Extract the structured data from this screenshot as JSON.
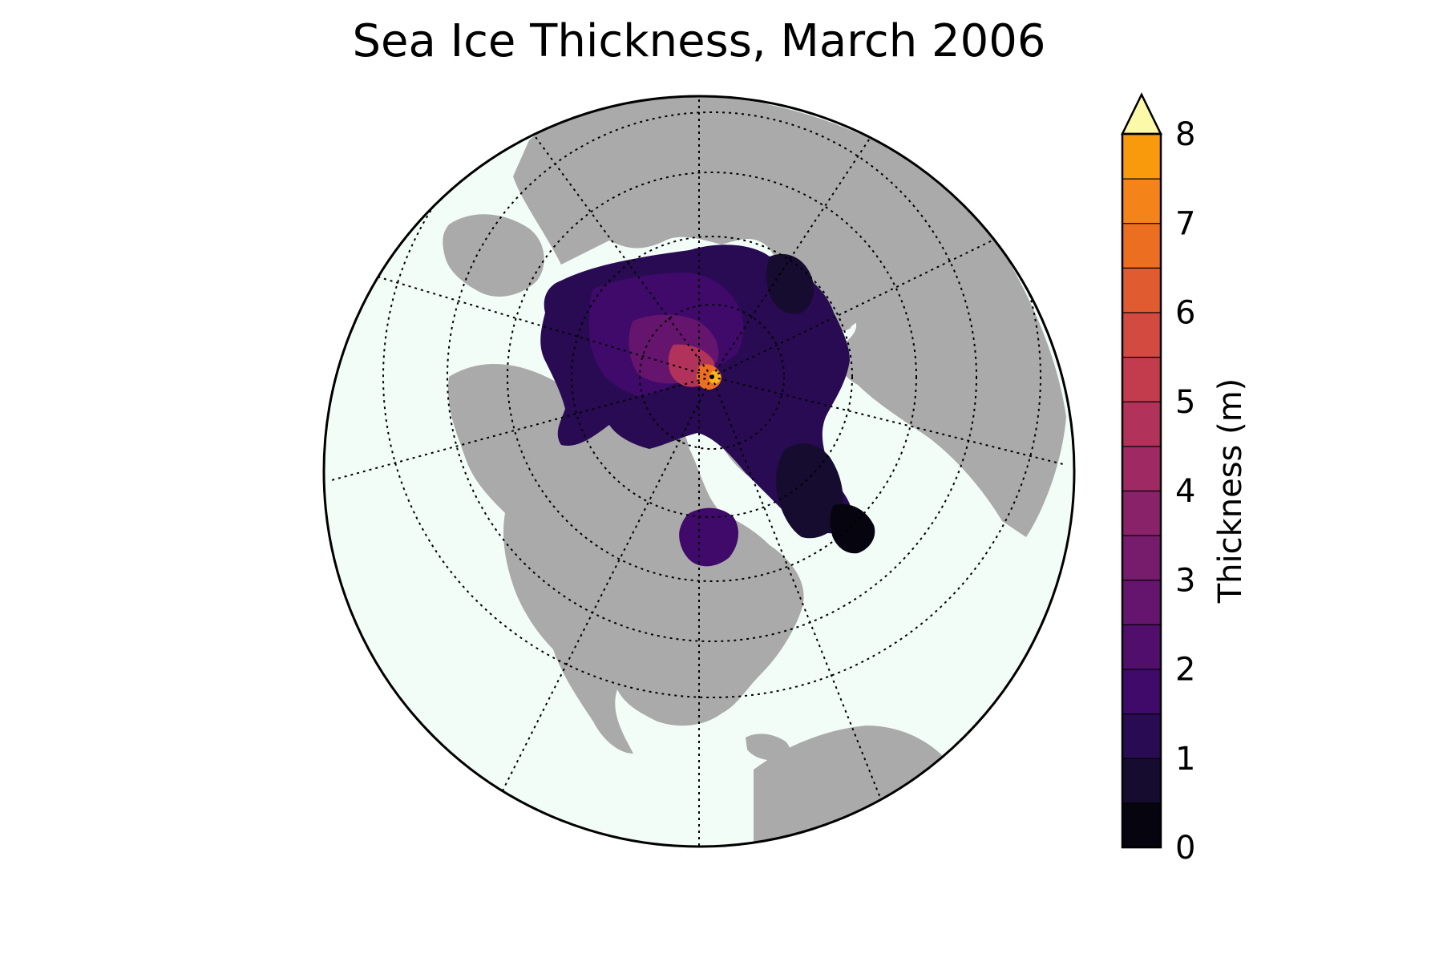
{
  "title": "Sea Ice Thickness, March 2006",
  "map": {
    "projection": "orthographic",
    "ocean_color": "#f3fdf8",
    "land_color": "#aaaaaa",
    "graticule_style": "dotted"
  },
  "colorbar": {
    "label": "Thickness (m)",
    "ticks": [
      "0",
      "1",
      "2",
      "3",
      "4",
      "5",
      "6",
      "7",
      "8"
    ],
    "range": [
      0,
      8
    ],
    "step": 0.5,
    "extend": "max",
    "colors": [
      "#06040f",
      "#160c30",
      "#290b53",
      "#3f0a6a",
      "#510e6c",
      "#65156e",
      "#771c6d",
      "#8a226a",
      "#9e2963",
      "#b1325a",
      "#c23c4e",
      "#d24a40",
      "#e05b30",
      "#eb6e21",
      "#f4841a",
      "#f89a0c",
      "#f8b51e",
      "#f2cf44",
      "#f6e86c"
    ],
    "extend_color": "#fcfaa8"
  },
  "chart_data": {
    "type": "heatmap",
    "title": "Sea Ice Thickness, March 2006",
    "colorbar_label": "Thickness (m)",
    "colorbar_range": [
      0,
      8
    ],
    "colorbar_ticks": [
      0,
      1,
      2,
      3,
      4,
      5,
      6,
      7,
      8
    ]
  }
}
